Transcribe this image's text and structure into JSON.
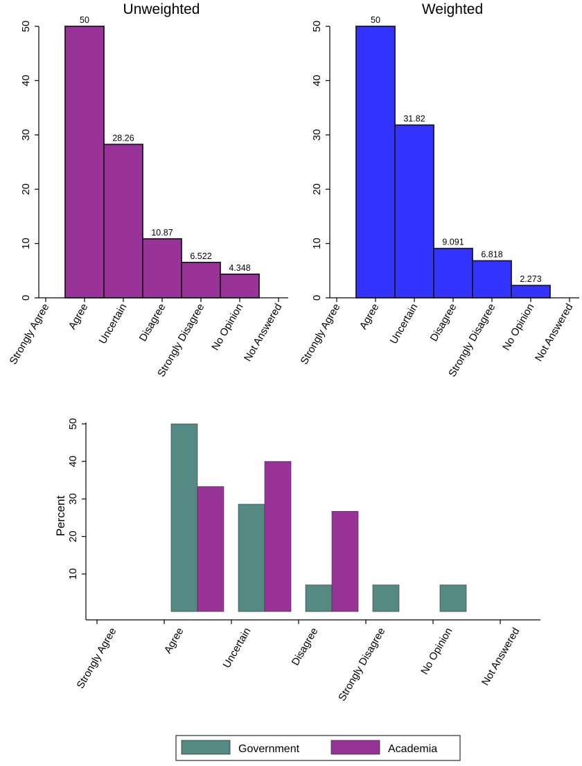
{
  "colors": {
    "unweighted": "#993399",
    "weighted": "#3333ff",
    "government": "#558a84",
    "academia": "#993399",
    "outline": "#1a1a1a"
  },
  "chart_data": [
    {
      "type": "bar",
      "title": "Unweighted",
      "categories": [
        "Strongly Agree",
        "Agree",
        "Uncertain",
        "Disagree",
        "Strongly Disagree",
        "No Opinion",
        "Not Answered"
      ],
      "values": [
        null,
        50,
        28.26,
        10.87,
        6.522,
        4.348,
        null
      ],
      "value_labels": [
        "",
        "50",
        "28.26",
        "10.87",
        "6.522",
        "4.348",
        ""
      ],
      "yticks": [
        "0",
        "10",
        "20",
        "30",
        "40",
        "50"
      ],
      "ylim": [
        0,
        50
      ],
      "xlabel": "",
      "ylabel": "",
      "grid": false
    },
    {
      "type": "bar",
      "title": "Weighted",
      "categories": [
        "Strongly Agree",
        "Agree",
        "Uncertain",
        "Disagree",
        "Strongly Disagree",
        "No Opinion",
        "Not Answered"
      ],
      "values": [
        null,
        50,
        31.82,
        9.091,
        6.818,
        2.273,
        null
      ],
      "value_labels": [
        "",
        "50",
        "31.82",
        "9.091",
        "6.818",
        "2.273",
        ""
      ],
      "yticks": [
        "0",
        "10",
        "20",
        "30",
        "40",
        "50"
      ],
      "ylim": [
        0,
        50
      ],
      "xlabel": "",
      "ylabel": "",
      "grid": false
    },
    {
      "type": "bar",
      "title": "",
      "categories": [
        "Strongly Agree",
        "Agree",
        "Uncertain",
        "Disagree",
        "Strongly Disagree",
        "No Opinion",
        "Not Answered"
      ],
      "series": [
        {
          "name": "Government",
          "values": [
            null,
            50,
            28.6,
            7.1,
            7.1,
            7.1,
            null
          ]
        },
        {
          "name": "Academia",
          "values": [
            null,
            33.3,
            40,
            26.7,
            null,
            null,
            null
          ]
        }
      ],
      "yticks": [
        "10",
        "20",
        "30",
        "40",
        "50"
      ],
      "ylim": [
        0,
        50
      ],
      "xlabel": "",
      "ylabel": "Percent",
      "legend": "bottom",
      "grid": false
    }
  ]
}
